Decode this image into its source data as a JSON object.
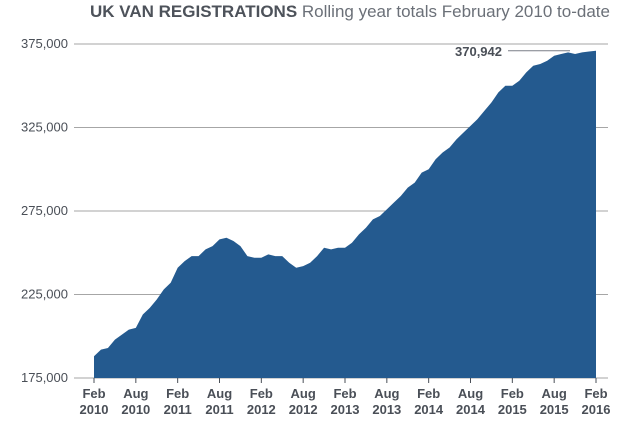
{
  "chart_data": {
    "type": "area",
    "title": "UK VAN REGISTRATIONS",
    "subtitle": "Rolling year totals February 2010 to-date",
    "xlabel": "",
    "ylabel": "",
    "ylim": [
      175000,
      375000
    ],
    "yticks": [
      "175,000",
      "225,000",
      "275,000",
      "325,000",
      "375,000"
    ],
    "ytick_values": [
      175000,
      225000,
      275000,
      325000,
      375000
    ],
    "xticks": [
      {
        "month": "Feb",
        "year": "2010"
      },
      {
        "month": "Aug",
        "year": "2010"
      },
      {
        "month": "Feb",
        "year": "2011"
      },
      {
        "month": "Aug",
        "year": "2011"
      },
      {
        "month": "Feb",
        "year": "2012"
      },
      {
        "month": "Aug",
        "year": "2012"
      },
      {
        "month": "Feb",
        "year": "2013"
      },
      {
        "month": "Aug",
        "year": "2013"
      },
      {
        "month": "Feb",
        "year": "2014"
      },
      {
        "month": "Aug",
        "year": "2014"
      },
      {
        "month": "Feb",
        "year": "2015"
      },
      {
        "month": "Aug",
        "year": "2015"
      },
      {
        "month": "Feb",
        "year": "2016"
      }
    ],
    "grid": true,
    "fill_color": "#245a8f",
    "grid_color": "#a6a6a6",
    "x": [
      "2010-02",
      "2010-03",
      "2010-04",
      "2010-05",
      "2010-06",
      "2010-07",
      "2010-08",
      "2010-09",
      "2010-10",
      "2010-11",
      "2010-12",
      "2011-01",
      "2011-02",
      "2011-03",
      "2011-04",
      "2011-05",
      "2011-06",
      "2011-07",
      "2011-08",
      "2011-09",
      "2011-10",
      "2011-11",
      "2011-12",
      "2012-01",
      "2012-02",
      "2012-03",
      "2012-04",
      "2012-05",
      "2012-06",
      "2012-07",
      "2012-08",
      "2012-09",
      "2012-10",
      "2012-11",
      "2012-12",
      "2013-01",
      "2013-02",
      "2013-03",
      "2013-04",
      "2013-05",
      "2013-06",
      "2013-07",
      "2013-08",
      "2013-09",
      "2013-10",
      "2013-11",
      "2013-12",
      "2014-01",
      "2014-02",
      "2014-03",
      "2014-04",
      "2014-05",
      "2014-06",
      "2014-07",
      "2014-08",
      "2014-09",
      "2014-10",
      "2014-11",
      "2014-12",
      "2015-01",
      "2015-02",
      "2015-03",
      "2015-04",
      "2015-05",
      "2015-06",
      "2015-07",
      "2015-08",
      "2015-09",
      "2015-10",
      "2015-11",
      "2015-12",
      "2016-01",
      "2016-02"
    ],
    "values": [
      188000,
      192000,
      193000,
      198000,
      201000,
      204000,
      205000,
      213000,
      217000,
      222000,
      228000,
      232000,
      241000,
      245000,
      248000,
      248000,
      252000,
      254000,
      258000,
      259000,
      257000,
      254000,
      248000,
      247000,
      247000,
      249000,
      248000,
      248000,
      244000,
      241000,
      242000,
      244000,
      248000,
      253000,
      252000,
      253000,
      253000,
      256000,
      261000,
      265000,
      270000,
      272000,
      276000,
      280000,
      284000,
      289000,
      292000,
      298000,
      300000,
      306000,
      310000,
      313000,
      318000,
      322000,
      326000,
      330000,
      335000,
      340000,
      346000,
      350000,
      350000,
      353000,
      358000,
      362000,
      363000,
      365000,
      368000,
      369000,
      370000,
      369000,
      370000,
      370500,
      370942
    ],
    "callout": {
      "label": "370,942",
      "value": 370942
    }
  }
}
